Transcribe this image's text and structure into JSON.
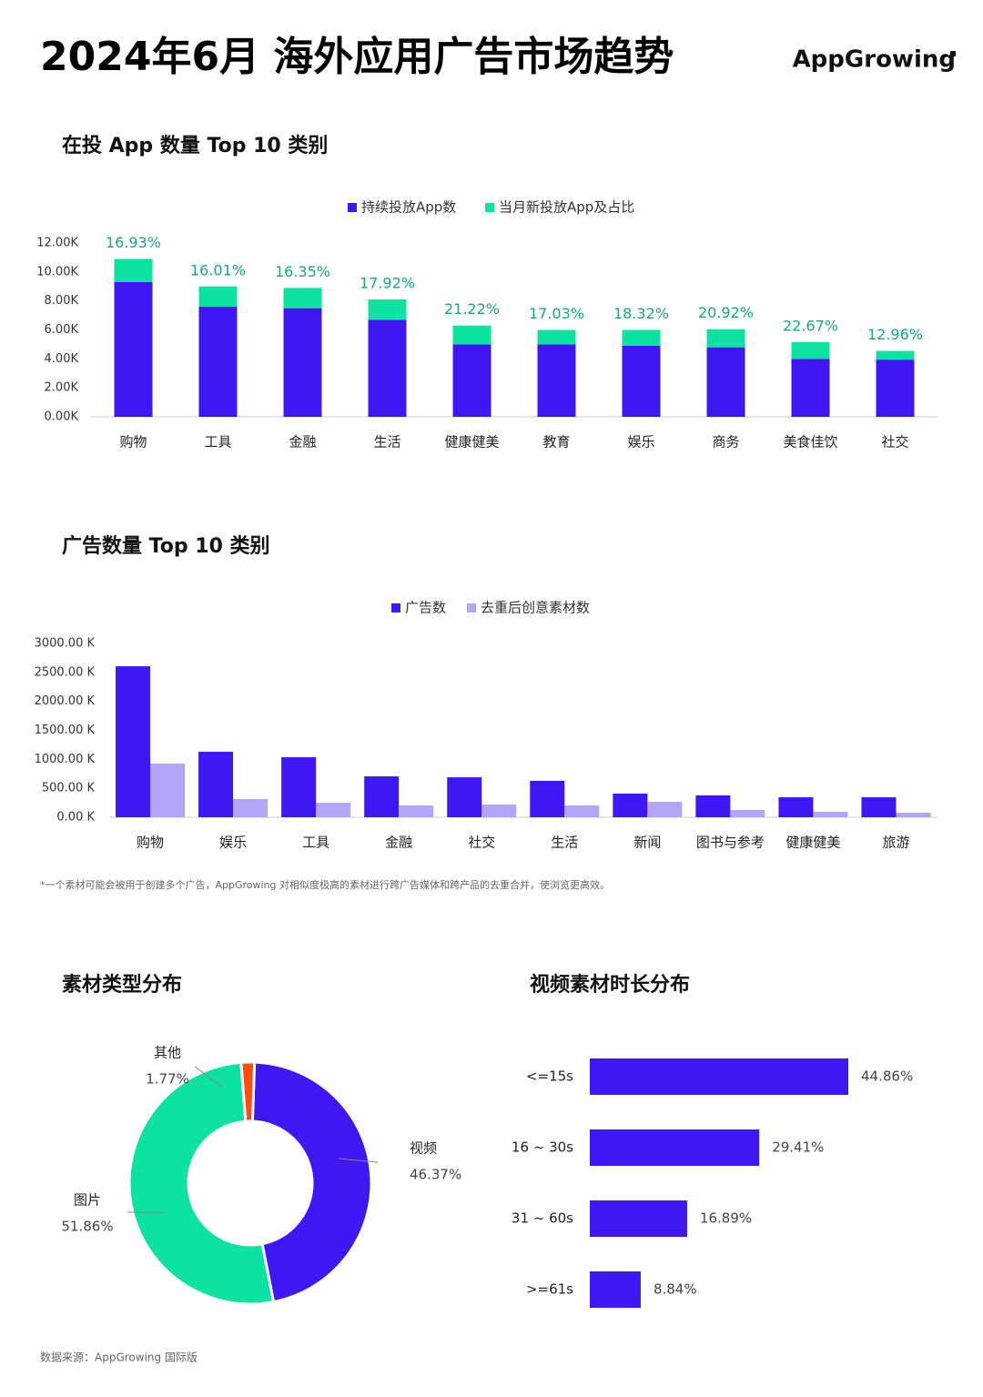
{
  "header": {
    "title": "2024年6月 海外应用广告市场趋势",
    "logo": "AppGrowing"
  },
  "chart_data": [
    {
      "type": "stacked_bar",
      "title": "在投 App 数量 Top 10 类别",
      "categories": [
        "购物",
        "工具",
        "金融",
        "生活",
        "健康健美",
        "教育",
        "娱乐",
        "商务",
        "美食佳饮",
        "社交"
      ],
      "series": [
        {
          "name": "持续投放App数",
          "color": "#3f17f5",
          "values": [
            9.3,
            7.6,
            7.5,
            6.7,
            5.0,
            5.0,
            4.9,
            4.8,
            4.0,
            3.95
          ]
        },
        {
          "name": "当月新投放App及占比",
          "color": "#0de3a0",
          "values": [
            1.6,
            1.4,
            1.4,
            1.4,
            1.3,
            1.0,
            1.1,
            1.25,
            1.15,
            0.6
          ]
        }
      ],
      "share_labels": [
        "16.93%",
        "16.01%",
        "16.35%",
        "17.92%",
        "21.22%",
        "17.03%",
        "18.32%",
        "20.92%",
        "22.67%",
        "12.96%"
      ],
      "label_color": "#13a981",
      "ylim": [
        0,
        12
      ],
      "yticks": [
        {
          "value": 0,
          "label": "0.00K"
        },
        {
          "value": 2,
          "label": "2.00K"
        },
        {
          "value": 4,
          "label": "4.00K"
        },
        {
          "value": 6,
          "label": "6.00K"
        },
        {
          "value": 8,
          "label": "8.00K"
        },
        {
          "value": 10,
          "label": "10.00K"
        },
        {
          "value": 12,
          "label": "12.00K"
        }
      ],
      "grid": false
    },
    {
      "type": "grouped_bar",
      "title": "广告数量 Top 10 类别",
      "categories": [
        "购物",
        "娱乐",
        "工具",
        "金融",
        "社交",
        "生活",
        "新闻",
        "图书与参考",
        "健康健美",
        "旅游"
      ],
      "series": [
        {
          "name": "广告数",
          "color": "#3f17f5",
          "values": [
            2606,
            1130,
            1036,
            706,
            690,
            628,
            408,
            377,
            345,
            345
          ]
        },
        {
          "name": "去重后创意素材数",
          "color": "#b3a6f8",
          "values": [
            926,
            314,
            251,
            204,
            220,
            204,
            267,
            126,
            94,
            79
          ]
        }
      ],
      "ylim": [
        0,
        3000
      ],
      "yticks": [
        {
          "value": 0,
          "label": "0.00 K"
        },
        {
          "value": 500,
          "label": "500.00 K"
        },
        {
          "value": 1000,
          "label": "1000.00 K"
        },
        {
          "value": 1500,
          "label": "1500.00 K"
        },
        {
          "value": 2000,
          "label": "2000.00 K"
        },
        {
          "value": 2500,
          "label": "2500.00 K"
        },
        {
          "value": 3000,
          "label": "3000.00 K"
        }
      ],
      "grid": false
    },
    {
      "type": "donut",
      "title": "素材类型分布",
      "categories": [
        "视频",
        "图片",
        "其他"
      ],
      "values": [
        46.37,
        51.86,
        1.77
      ],
      "value_labels": [
        "46.37%",
        "51.86%",
        "1.77%"
      ],
      "colors": [
        "#3f17f5",
        "#0de3a0",
        "#ff4d0d"
      ]
    },
    {
      "type": "hbar",
      "title": "视频素材时长分布",
      "categories": [
        "<=15s",
        "16 ~ 30s",
        "31 ~ 60s",
        ">=61s"
      ],
      "values": [
        44.86,
        29.41,
        16.89,
        8.84
      ],
      "value_labels": [
        "44.86%",
        "29.41%",
        "16.89%",
        "8.84%"
      ],
      "color": "#3f17f5"
    }
  ],
  "footnote": "*一个素材可能会被用于创建多个广告，AppGrowing 对相似度极高的素材进行跨广告媒体和跨产品的去重合并，使浏览更高效。",
  "source": "数据来源：AppGrowing 国际版"
}
